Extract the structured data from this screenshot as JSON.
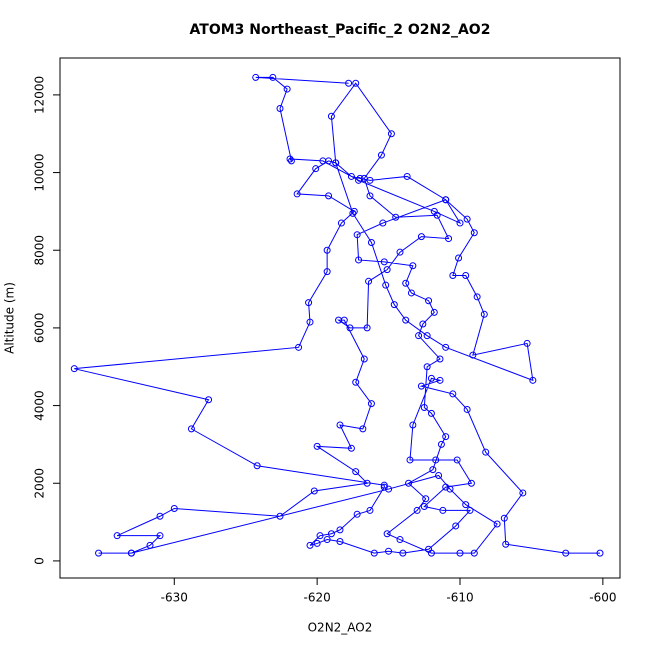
{
  "chart_data": {
    "type": "line",
    "markers": true,
    "title": "ATOM3 Northeast_Pacific_2 O2N2_AO2",
    "x_label": "O2N2_AO2",
    "y_label": "Altitude (m)",
    "color": "#0000ff",
    "xlim": [
      -638,
      -598.8
    ],
    "ylim": [
      -440,
      12950
    ],
    "xticks": [
      -630,
      -620,
      -610,
      -600
    ],
    "yticks": [
      0,
      2000,
      4000,
      6000,
      8000,
      10000,
      12000
    ],
    "series": [
      {
        "x": [
          -600.2,
          -602.6,
          -606.8,
          -606.9,
          -605.6,
          -608.2,
          -609.5,
          -610.5,
          -612.7,
          -611.4,
          -612,
          -613.3,
          -613.5,
          -611.7,
          -610.2,
          -609.2,
          -611,
          -612.5,
          -611.2,
          -609.3,
          -610.3,
          -612.2,
          -614,
          -615,
          -616,
          -618.4,
          -619.3,
          -620,
          -620.5,
          -619.8,
          -619,
          -618.4,
          -617.2,
          -616.3,
          -615.3,
          -615.3,
          -624.2,
          -628.8,
          -627.6,
          -637,
          -621.3,
          -620.5,
          -620.6,
          -619.3,
          -619.3,
          -618.3,
          -617.4,
          -619.2,
          -621.4,
          -620.1,
          -619.2,
          -618.7,
          -617.6,
          -617,
          -616.3,
          -613.7,
          -611,
          -609.5,
          -609,
          -610.1,
          -610.5,
          -609.6,
          -608.8,
          -608.3,
          -609.1,
          -605.3,
          -604.9,
          -611,
          -612.3,
          -613.8,
          -614.6,
          -615.2,
          -616.2,
          -617.5,
          -618.7,
          -619,
          -617.3,
          -614.8,
          -615.5,
          -616.7,
          -616.3,
          -614.5,
          -611.6,
          -610.8,
          -612.7,
          -614.2,
          -615.1,
          -616.4,
          -616.5,
          -617.7,
          -618.5,
          -618.1,
          -616.7,
          -617.3,
          -616.2,
          -616.8,
          -618.4,
          -617.6,
          -620,
          -617.3,
          -616.5,
          -620.2,
          -622.6,
          -630,
          -631,
          -634,
          -631,
          -631.7,
          -633,
          -635.3,
          -633,
          -615,
          -611.5,
          -610.7,
          -609.6,
          -607.4,
          -609,
          -610,
          -612,
          -614.2,
          -615.1,
          -613,
          -612.4,
          -613.6,
          -611.9,
          -611.3,
          -611,
          -612,
          -612.5,
          -612.3,
          -611.4,
          -612.9,
          -612.6,
          -611.8,
          -612.2,
          -613.4,
          -613.8,
          -613.3,
          -615.3,
          -617.1,
          -617.2,
          -615.4,
          -611,
          -610,
          -611.8,
          -617.1,
          -619.6,
          -621.9,
          -621.8,
          -622.6,
          -622.1,
          -623.1,
          -624.3,
          -617.8
        ],
        "values": [
          200,
          200,
          430,
          1100,
          1750,
          2800,
          3900,
          4300,
          4500,
          4650,
          4700,
          3500,
          2600,
          2600,
          2600,
          2000,
          1900,
          1400,
          1300,
          1300,
          900,
          300,
          200,
          250,
          200,
          500,
          550,
          450,
          400,
          650,
          700,
          800,
          1200,
          1300,
          1900,
          1950,
          2450,
          3400,
          4150,
          4950,
          5500,
          6150,
          6650,
          7450,
          8000,
          8700,
          9000,
          9400,
          9450,
          10100,
          10300,
          10250,
          9900,
          9850,
          9800,
          9900,
          9300,
          8800,
          8450,
          7800,
          7350,
          7350,
          6800,
          6350,
          5300,
          5600,
          4650,
          5500,
          5800,
          6200,
          6600,
          7100,
          8200,
          8950,
          10250,
          11450,
          12300,
          11000,
          10450,
          9850,
          9400,
          8850,
          8900,
          8300,
          8350,
          7950,
          7500,
          7200,
          6000,
          6000,
          6200,
          6200,
          5200,
          4600,
          4050,
          3400,
          3500,
          2900,
          2950,
          2300,
          2000,
          1800,
          1150,
          1350,
          1150,
          650,
          650,
          400,
          200,
          200,
          200,
          1850,
          2200,
          1850,
          1450,
          950,
          200,
          200,
          200,
          550,
          700,
          1300,
          1600,
          2000,
          2350,
          3000,
          3200,
          3800,
          3950,
          5000,
          5200,
          5800,
          6100,
          6400,
          6700,
          6900,
          7150,
          7600,
          7700,
          7750,
          8400,
          8700,
          9300,
          8700,
          9000,
          9800,
          10300,
          10350,
          10300,
          11650,
          12150,
          12450,
          12450,
          12300
        ]
      }
    ]
  }
}
